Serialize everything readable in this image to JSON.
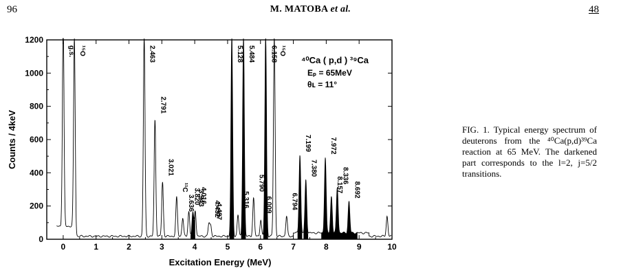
{
  "page": {
    "number": "96",
    "header_author": "M. MATOBA",
    "header_etal": "et al.",
    "volume": "48"
  },
  "caption": {
    "text": "FIG. 1. Typical energy spectrum of deuterons from the ⁴⁰Ca(p,d)³⁹Ca reaction at 65 MeV. The darkened part corresponds to the l=2, j=5/2 transitions."
  },
  "chart_data": {
    "type": "line",
    "xlabel": "Excitation Energy (MeV)",
    "ylabel": "Counts / 4keV",
    "xlim": [
      -0.5,
      10
    ],
    "ylim": [
      0,
      1200
    ],
    "xticks": [
      "0",
      "1",
      "2",
      "3",
      "4",
      "5",
      "6",
      "7",
      "8",
      "9",
      "10"
    ],
    "yticks": [
      "0",
      "200",
      "400",
      "600",
      "800",
      "1000",
      "1200"
    ],
    "legend_lines": [
      "⁴⁰Ca ( p,d ) ³⁹Ca",
      "Eₚ = 65MeV",
      "θʟ = 11°"
    ],
    "grid": false,
    "peaks": [
      {
        "x": 0.0,
        "y": 1200,
        "label": "g.s.",
        "filled": false
      },
      {
        "x": 0.34,
        "y": 1200,
        "label": "¹⁵O",
        "filled": false
      },
      {
        "x": 2.463,
        "y": 1200,
        "label": "2.463",
        "filled": false
      },
      {
        "x": 2.791,
        "y": 700,
        "label": "2.791",
        "filled": false
      },
      {
        "x": 3.021,
        "y": 325,
        "label": "3.021",
        "filled": false
      },
      {
        "x": 3.45,
        "y": 235,
        "label": "¹¹C",
        "filled": false
      },
      {
        "x": 3.636,
        "y": 110,
        "label": "3.636",
        "filled": false
      },
      {
        "x": 3.82,
        "y": 150,
        "label": "3.820",
        "filled": false
      },
      {
        "x": 3.943,
        "y": 140,
        "label": "3.943",
        "filled": true
      },
      {
        "x": 4.016,
        "y": 155,
        "label": "4.016",
        "filled": false
      },
      {
        "x": 4.432,
        "y": 75,
        "label": "4.432",
        "filled": false
      },
      {
        "x": 4.487,
        "y": 60,
        "label": "4.487",
        "filled": false
      },
      {
        "x": 5.128,
        "y": 1200,
        "label": "5.128",
        "filled": true
      },
      {
        "x": 5.316,
        "y": 130,
        "label": "5.316",
        "filled": false
      },
      {
        "x": 5.484,
        "y": 1200,
        "label": "5.484",
        "filled": true
      },
      {
        "x": 5.79,
        "y": 230,
        "label": "5.790",
        "filled": false
      },
      {
        "x": 6.009,
        "y": 100,
        "label": "6.009",
        "filled": false
      },
      {
        "x": 6.158,
        "y": 1200,
        "label": "6.158",
        "filled": true
      },
      {
        "x": 6.42,
        "y": 1200,
        "label": "¹⁵O",
        "filled": false
      },
      {
        "x": 6.794,
        "y": 120,
        "label": "6.794",
        "filled": false
      },
      {
        "x": 7.199,
        "y": 470,
        "label": "7.199",
        "filled": true
      },
      {
        "x": 7.38,
        "y": 320,
        "label": "7.380",
        "filled": true
      },
      {
        "x": 7.972,
        "y": 455,
        "label": "7.972",
        "filled": true
      },
      {
        "x": 8.157,
        "y": 220,
        "label": "8.157",
        "filled": true
      },
      {
        "x": 8.336,
        "y": 275,
        "label": "8.336",
        "filled": true
      },
      {
        "x": 8.692,
        "y": 190,
        "label": "8.692",
        "filled": true
      },
      {
        "x": 9.85,
        "y": 120,
        "label": "",
        "filled": false
      }
    ]
  }
}
